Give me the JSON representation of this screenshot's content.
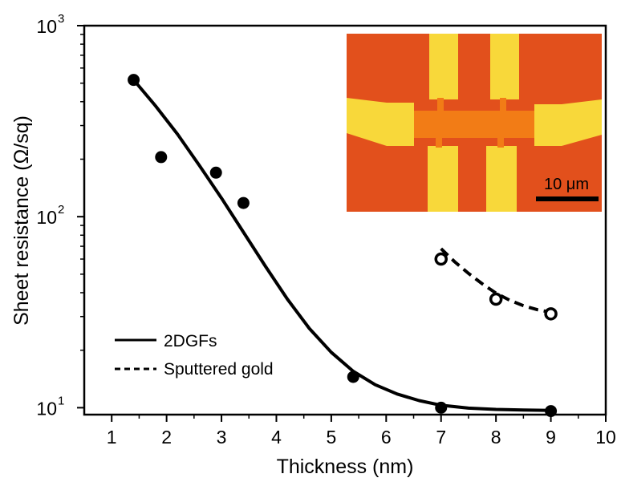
{
  "chart_data": {
    "type": "scatter",
    "xlabel": "Thickness (nm)",
    "ylabel": "Sheet resistance (Ω/sq)",
    "xlim": [
      0.5,
      10
    ],
    "ylim": [
      9.2,
      1000
    ],
    "yscale": "log",
    "xticks": [
      "1",
      "2",
      "3",
      "4",
      "5",
      "6",
      "7",
      "8",
      "9",
      "10"
    ],
    "yticks": [
      {
        "value": 10,
        "base": "10",
        "exp": "1"
      },
      {
        "value": 100,
        "base": "10",
        "exp": "2"
      },
      {
        "value": 1000,
        "base": "10",
        "exp": "3"
      }
    ],
    "series": [
      {
        "name": "2DGFs",
        "marker": "filled-circle",
        "line": "solid",
        "points": [
          [
            1.4,
            520
          ],
          [
            1.9,
            205
          ],
          [
            2.9,
            170
          ],
          [
            3.4,
            118
          ],
          [
            5.4,
            14.5
          ],
          [
            7.0,
            10.0
          ],
          [
            9.0,
            9.6
          ]
        ],
        "fit": [
          [
            1.4,
            520
          ],
          [
            1.8,
            380
          ],
          [
            2.2,
            270
          ],
          [
            2.6,
            185
          ],
          [
            3.0,
            125
          ],
          [
            3.4,
            83
          ],
          [
            3.8,
            55
          ],
          [
            4.2,
            37
          ],
          [
            4.6,
            26
          ],
          [
            5.0,
            19.5
          ],
          [
            5.4,
            15.5
          ],
          [
            5.8,
            13.2
          ],
          [
            6.2,
            11.8
          ],
          [
            6.6,
            10.9
          ],
          [
            7.0,
            10.3
          ],
          [
            7.5,
            9.95
          ],
          [
            8.0,
            9.8
          ],
          [
            8.5,
            9.72
          ],
          [
            9.0,
            9.68
          ]
        ]
      },
      {
        "name": "Sputtered gold",
        "marker": "open-circle",
        "line": "dashed",
        "points": [
          [
            7.0,
            60
          ],
          [
            8.0,
            37
          ],
          [
            9.0,
            31
          ]
        ],
        "fit": [
          [
            7.0,
            68
          ],
          [
            7.25,
            58
          ],
          [
            7.5,
            50.5
          ],
          [
            7.75,
            44.5
          ],
          [
            8.0,
            39.8
          ],
          [
            8.25,
            36.5
          ],
          [
            8.5,
            34.2
          ],
          [
            8.75,
            32.6
          ],
          [
            9.0,
            31.6
          ]
        ]
      }
    ],
    "legend": {
      "position": "bottom-left",
      "entries": [
        "2DGFs",
        "Sputtered gold"
      ]
    },
    "inset": {
      "description_key": "optical-micrograph",
      "scale_bar_label": "10 μm",
      "colors": {
        "background": "#e2501c",
        "gold": "#f8d83a",
        "channel": "#f27c16"
      }
    }
  }
}
